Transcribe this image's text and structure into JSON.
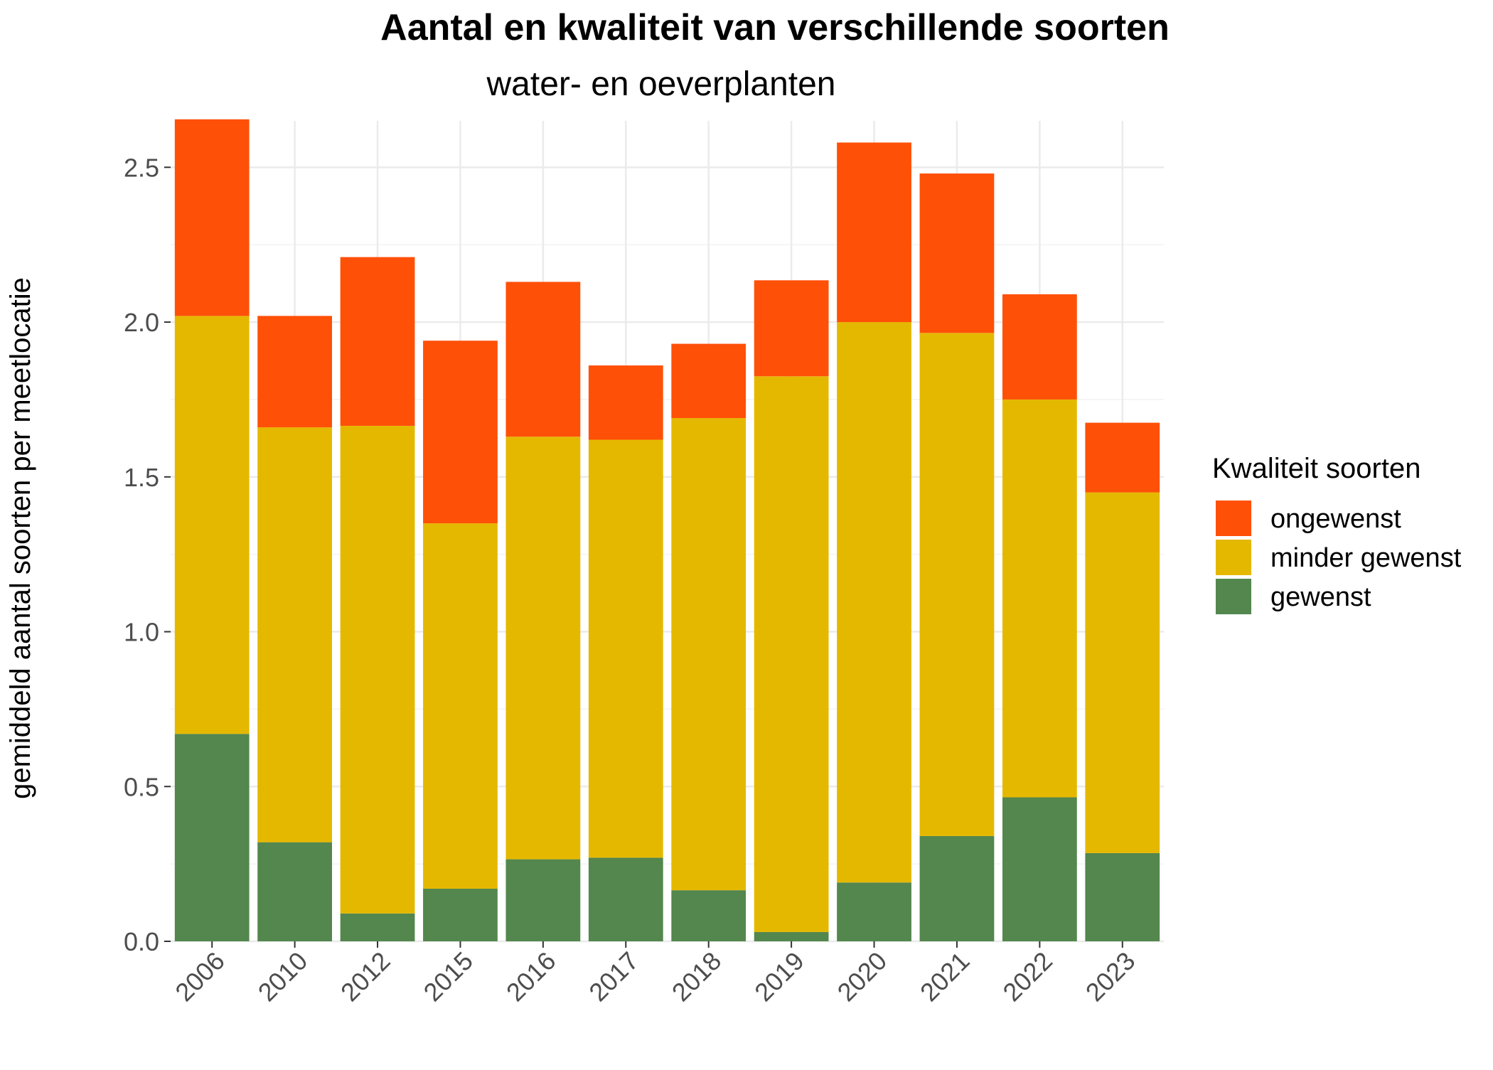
{
  "chart_data": {
    "type": "bar",
    "stacked": true,
    "title": "Aantal en kwaliteit van verschillende soorten",
    "subtitle": "water- en oeverplanten",
    "xlabel": "",
    "ylabel": "gemiddeld aantal soorten per meetlocatie",
    "ylim": [
      0,
      2.65
    ],
    "yticks": [
      "0.0",
      "0.5",
      "1.0",
      "1.5",
      "2.0",
      "2.5"
    ],
    "grid": true,
    "legend_title": "Kwaliteit soorten",
    "legend_position": "right",
    "categories": [
      "2006",
      "2010",
      "2012",
      "2015",
      "2016",
      "2017",
      "2018",
      "2019",
      "2020",
      "2021",
      "2022",
      "2023"
    ],
    "series": [
      {
        "name": "gewenst",
        "color": "#53874D",
        "values": [
          0.67,
          0.32,
          0.09,
          0.17,
          0.265,
          0.27,
          0.165,
          0.03,
          0.19,
          0.34,
          0.465,
          0.285
        ]
      },
      {
        "name": "minder gewenst",
        "color": "#E5B800",
        "values": [
          1.35,
          1.34,
          1.575,
          1.18,
          1.365,
          1.35,
          1.525,
          1.795,
          1.81,
          1.625,
          1.285,
          1.165
        ]
      },
      {
        "name": "ongewenst",
        "color": "#FF5008",
        "values": [
          0.635,
          0.36,
          0.545,
          0.59,
          0.5,
          0.24,
          0.24,
          0.31,
          0.58,
          0.515,
          0.34,
          0.225
        ]
      }
    ]
  }
}
